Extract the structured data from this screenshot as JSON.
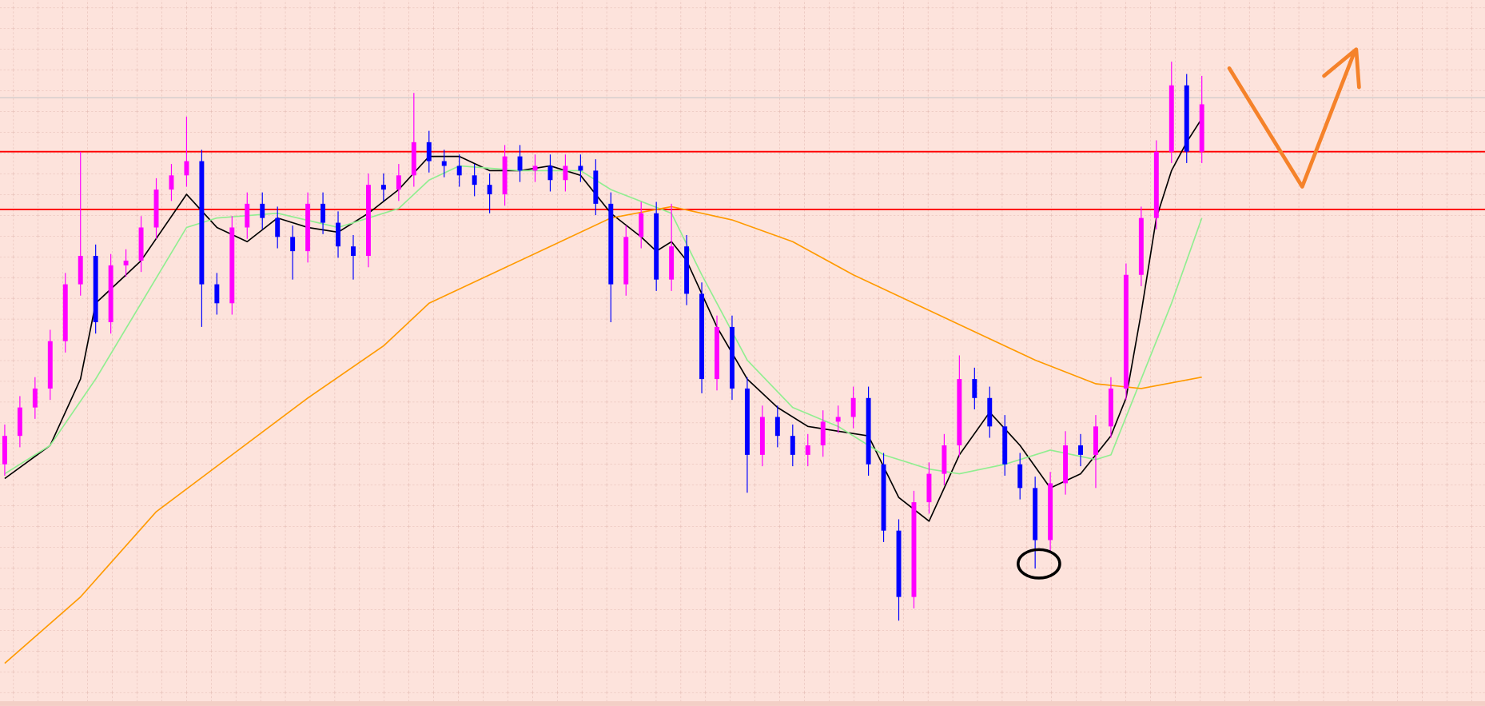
{
  "chart_data": {
    "type": "candlestick",
    "xlim": [
      -0.3125,
      97.6875
    ],
    "ylim": [
      0,
      745
    ],
    "grid": true,
    "up_color": "#ff00ff",
    "down_color": "#0000ff",
    "open": [
      255,
      285,
      315,
      335,
      385,
      445,
      475,
      405,
      465,
      470,
      505,
      545,
      560,
      575,
      445,
      425,
      505,
      530,
      515,
      495,
      480,
      530,
      510,
      485,
      475,
      550,
      545,
      560,
      595,
      575,
      570,
      560,
      550,
      540,
      580,
      565,
      570,
      555,
      570,
      565,
      530,
      445,
      495,
      520,
      450,
      485,
      435,
      345,
      400,
      335,
      265,
      305,
      285,
      265,
      275,
      300,
      305,
      325,
      255,
      185,
      115,
      215,
      245,
      275,
      345,
      325,
      295,
      255,
      230,
      175,
      235,
      275,
      265,
      295,
      335,
      455,
      515,
      585,
      655,
      585
    ],
    "high": [
      297,
      327,
      347,
      397,
      457,
      585,
      487,
      477,
      482,
      517,
      557,
      572,
      622,
      587,
      457,
      517,
      542,
      542,
      527,
      507,
      542,
      542,
      522,
      497,
      562,
      562,
      572,
      647,
      607,
      587,
      582,
      572,
      562,
      592,
      592,
      582,
      582,
      582,
      582,
      577,
      542,
      507,
      532,
      532,
      530,
      497,
      447,
      412,
      412,
      347,
      317,
      317,
      297,
      287,
      312,
      317,
      337,
      337,
      267,
      197,
      227,
      257,
      287,
      370,
      357,
      337,
      307,
      267,
      242,
      247,
      290,
      287,
      307,
      347,
      467,
      527,
      597,
      680,
      667,
      665
    ],
    "low": [
      243,
      273,
      303,
      323,
      373,
      433,
      393,
      393,
      453,
      458,
      493,
      533,
      548,
      400,
      413,
      413,
      493,
      503,
      483,
      450,
      468,
      498,
      473,
      450,
      463,
      533,
      533,
      548,
      563,
      558,
      548,
      538,
      520,
      528,
      553,
      553,
      543,
      543,
      553,
      518,
      405,
      433,
      483,
      438,
      438,
      423,
      330,
      333,
      323,
      225,
      253,
      273,
      253,
      253,
      263,
      288,
      293,
      243,
      173,
      90,
      103,
      203,
      233,
      263,
      313,
      283,
      243,
      218,
      145,
      163,
      223,
      253,
      230,
      283,
      323,
      443,
      503,
      573,
      573,
      573
    ],
    "close": [
      285,
      315,
      335,
      385,
      445,
      475,
      405,
      465,
      470,
      505,
      545,
      560,
      575,
      445,
      425,
      505,
      530,
      515,
      495,
      480,
      530,
      510,
      485,
      475,
      550,
      545,
      560,
      595,
      575,
      570,
      560,
      550,
      540,
      580,
      565,
      570,
      555,
      570,
      565,
      530,
      445,
      495,
      520,
      450,
      485,
      435,
      345,
      400,
      335,
      265,
      305,
      285,
      265,
      275,
      300,
      305,
      325,
      255,
      185,
      115,
      215,
      245,
      275,
      345,
      325,
      295,
      255,
      230,
      175,
      235,
      275,
      265,
      295,
      335,
      455,
      515,
      585,
      655,
      585,
      635
    ],
    "series": [
      {
        "color": "#000000",
        "x": [
          0,
          3,
          5,
          6,
          9,
          12,
          14,
          16,
          18,
          20,
          22,
          24,
          26,
          28,
          30,
          32,
          34,
          36,
          38,
          40,
          42,
          43,
          44,
          45,
          47,
          49,
          51,
          53,
          55,
          57,
          59,
          61,
          63,
          65,
          67,
          69,
          71,
          73,
          74,
          75,
          76,
          77,
          78,
          79
        ],
        "values": [
          240,
          275,
          345,
          425,
          470,
          540,
          505,
          490,
          515,
          505,
          500,
          520,
          545,
          580,
          580,
          565,
          565,
          570,
          560,
          520,
          495,
          480,
          490,
          470,
          400,
          345,
          315,
          295,
          290,
          285,
          220,
          195,
          265,
          310,
          275,
          230,
          245,
          285,
          325,
          415,
          515,
          565,
          595,
          620
        ]
      },
      {
        "color": "#90ee90",
        "x": [
          0,
          3,
          6,
          9,
          12,
          14,
          18,
          22,
          26,
          28,
          30,
          34,
          38,
          40,
          44,
          46,
          49,
          52,
          55,
          58,
          61,
          63,
          66,
          69,
          72,
          73,
          75,
          77,
          79
        ],
        "values": [
          245,
          275,
          345,
          425,
          505,
          515,
          520,
          505,
          525,
          555,
          570,
          565,
          565,
          545,
          520,
          455,
          365,
          315,
          295,
          265,
          250,
          245,
          255,
          270,
          260,
          265,
          345,
          425,
          515
        ]
      },
      {
        "color": "#ff9a00",
        "x": [
          0,
          5,
          10,
          15,
          20,
          25,
          28,
          32,
          36,
          40,
          44,
          48,
          52,
          56,
          60,
          64,
          68,
          72,
          75,
          79
        ],
        "values": [
          45,
          115,
          205,
          265,
          325,
          380,
          425,
          455,
          485,
          515,
          527,
          513,
          490,
          455,
          425,
          395,
          365,
          340,
          335,
          347
        ]
      }
    ],
    "levels": [
      {
        "value": 585,
        "color": "#ff0000"
      },
      {
        "value": 524,
        "color": "#ff0000"
      },
      {
        "value": 642,
        "color": "#c8c8c8"
      }
    ]
  }
}
